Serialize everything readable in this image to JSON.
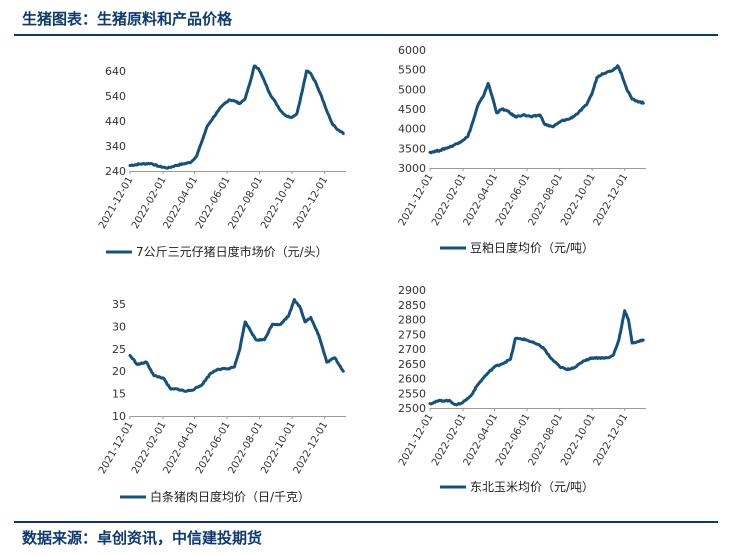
{
  "header": {
    "title": "生猪图表：生猪原料和产品价格"
  },
  "footer": {
    "source": "数据来源：卓创资讯，中信建投期货"
  },
  "colors": {
    "line": "#14517e",
    "accent": "#0d3a6e"
  },
  "chart_data": [
    {
      "type": "line",
      "legend": "7公斤三元仔猪日度市场价（元/头）",
      "legend_position": "bottom",
      "grid": false,
      "ylim": [
        240,
        640
      ],
      "yticks": [
        240,
        340,
        440,
        540,
        640
      ],
      "xlim": [
        "2021-12-01",
        "2023-01-10"
      ],
      "xticks": [
        "2021-12-01",
        "2022-02-01",
        "2022-04-01",
        "2022-06-01",
        "2022-08-01",
        "2022-10-01",
        "2022-12-01"
      ],
      "x": [
        "2021-12-01",
        "2021-12-20",
        "2022-01-10",
        "2022-01-25",
        "2022-02-10",
        "2022-02-25",
        "2022-03-10",
        "2022-03-25",
        "2022-04-05",
        "2022-04-15",
        "2022-04-25",
        "2022-05-05",
        "2022-05-15",
        "2022-05-25",
        "2022-06-05",
        "2022-06-15",
        "2022-06-25",
        "2022-07-05",
        "2022-07-15",
        "2022-07-22",
        "2022-07-30",
        "2022-08-10",
        "2022-08-20",
        "2022-09-01",
        "2022-09-10",
        "2022-09-20",
        "2022-10-01",
        "2022-10-10",
        "2022-10-20",
        "2022-10-28",
        "2022-11-05",
        "2022-11-15",
        "2022-11-25",
        "2022-12-05",
        "2022-12-15",
        "2022-12-25",
        "2023-01-05"
      ],
      "values": [
        262,
        268,
        270,
        258,
        252,
        262,
        268,
        275,
        300,
        360,
        420,
        450,
        480,
        505,
        525,
        520,
        510,
        530,
        600,
        660,
        650,
        600,
        550,
        510,
        480,
        460,
        455,
        470,
        560,
        640,
        630,
        590,
        540,
        480,
        430,
        405,
        390
      ]
    },
    {
      "type": "line",
      "legend": "豆粕日度均价（元/吨）",
      "legend_position": "bottom",
      "grid": false,
      "ylim": [
        3000,
        6000
      ],
      "yticks": [
        3000,
        3500,
        4000,
        4500,
        5000,
        5500,
        6000
      ],
      "xlim": [
        "2021-12-01",
        "2023-01-10"
      ],
      "xticks": [
        "2021-12-01",
        "2022-02-01",
        "2022-04-01",
        "2022-06-01",
        "2022-08-01",
        "2022-10-01",
        "2022-12-01"
      ],
      "x": [
        "2021-12-01",
        "2021-12-20",
        "2022-01-10",
        "2022-01-25",
        "2022-02-10",
        "2022-02-20",
        "2022-03-01",
        "2022-03-10",
        "2022-03-20",
        "2022-03-28",
        "2022-04-05",
        "2022-04-15",
        "2022-04-25",
        "2022-05-10",
        "2022-05-25",
        "2022-06-10",
        "2022-06-25",
        "2022-07-05",
        "2022-07-20",
        "2022-08-05",
        "2022-08-20",
        "2022-09-05",
        "2022-09-20",
        "2022-10-01",
        "2022-10-10",
        "2022-10-20",
        "2022-11-01",
        "2022-11-10",
        "2022-11-18",
        "2022-11-25",
        "2022-12-05",
        "2022-12-15",
        "2022-12-25",
        "2023-01-05"
      ],
      "values": [
        3400,
        3450,
        3550,
        3650,
        3800,
        4200,
        4600,
        4800,
        5150,
        4800,
        4400,
        4500,
        4450,
        4300,
        4350,
        4300,
        4350,
        4100,
        4050,
        4200,
        4250,
        4400,
        4600,
        4900,
        5300,
        5400,
        5450,
        5500,
        5600,
        5400,
        5000,
        4750,
        4700,
        4650
      ]
    },
    {
      "type": "line",
      "legend": "白条猪肉日度均价（日/千克）",
      "legend_position": "bottom",
      "grid": false,
      "ylim": [
        10,
        35
      ],
      "yticks": [
        10,
        15,
        20,
        25,
        30,
        35
      ],
      "xlim": [
        "2021-12-01",
        "2023-01-10"
      ],
      "xticks": [
        "2021-12-01",
        "2022-02-01",
        "2022-04-01",
        "2022-06-01",
        "2022-08-01",
        "2022-10-01",
        "2022-12-01"
      ],
      "x": [
        "2021-12-01",
        "2021-12-15",
        "2022-01-01",
        "2022-01-15",
        "2022-02-01",
        "2022-02-15",
        "2022-03-01",
        "2022-03-15",
        "2022-04-01",
        "2022-04-15",
        "2022-05-01",
        "2022-05-15",
        "2022-06-01",
        "2022-06-15",
        "2022-06-25",
        "2022-07-05",
        "2022-07-15",
        "2022-07-25",
        "2022-08-10",
        "2022-08-25",
        "2022-09-10",
        "2022-09-25",
        "2022-10-05",
        "2022-10-15",
        "2022-10-25",
        "2022-11-05",
        "2022-11-20",
        "2022-12-05",
        "2022-12-20",
        "2023-01-05"
      ],
      "values": [
        23.5,
        21.5,
        22,
        19,
        18.5,
        16,
        16,
        15.5,
        16,
        17,
        19.5,
        20.5,
        20.5,
        21,
        25,
        31,
        29,
        27,
        27,
        30.5,
        30.5,
        32.5,
        36,
        34.5,
        31,
        32,
        28,
        22,
        23,
        20
      ]
    },
    {
      "type": "line",
      "legend": "东北玉米均价（元/吨）",
      "legend_position": "bottom",
      "grid": false,
      "ylim": [
        2500,
        2900
      ],
      "yticks": [
        2500,
        2550,
        2600,
        2650,
        2700,
        2750,
        2800,
        2850,
        2900
      ],
      "xlim": [
        "2021-12-01",
        "2023-01-10"
      ],
      "xticks": [
        "2021-12-01",
        "2022-02-01",
        "2022-04-01",
        "2022-06-01",
        "2022-08-01",
        "2022-10-01",
        "2022-12-01"
      ],
      "x": [
        "2021-12-01",
        "2021-12-20",
        "2022-01-05",
        "2022-01-20",
        "2022-02-01",
        "2022-02-15",
        "2022-03-01",
        "2022-03-15",
        "2022-04-01",
        "2022-04-15",
        "2022-05-01",
        "2022-05-10",
        "2022-05-20",
        "2022-06-01",
        "2022-06-15",
        "2022-07-01",
        "2022-07-15",
        "2022-08-01",
        "2022-08-15",
        "2022-09-01",
        "2022-09-15",
        "2022-10-01",
        "2022-10-15",
        "2022-11-01",
        "2022-11-10",
        "2022-11-20",
        "2022-12-01",
        "2022-12-08",
        "2022-12-15",
        "2022-12-25",
        "2023-01-05"
      ],
      "values": [
        2515,
        2525,
        2525,
        2510,
        2520,
        2540,
        2580,
        2610,
        2640,
        2650,
        2665,
        2735,
        2735,
        2730,
        2720,
        2705,
        2670,
        2640,
        2630,
        2640,
        2660,
        2670,
        2670,
        2670,
        2680,
        2730,
        2830,
        2800,
        2720,
        2725,
        2730
      ]
    }
  ]
}
